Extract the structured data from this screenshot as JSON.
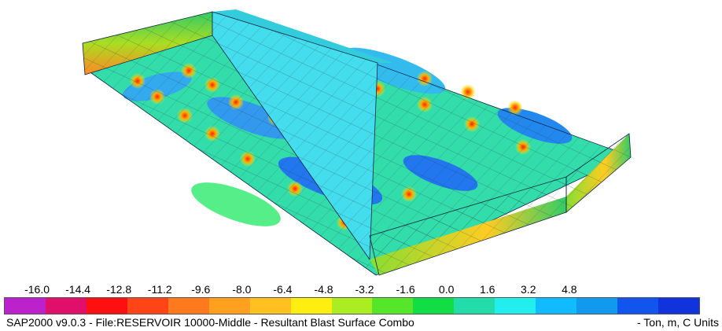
{
  "legend": {
    "ticks": [
      "-16.0",
      "-14.4",
      "-12.8",
      "-11.2",
      "-9.6",
      "-8.0",
      "-6.4",
      "-4.8",
      "-3.2",
      "-1.6",
      "0.0",
      "1.6",
      "3.2",
      "4.8"
    ]
  },
  "status": {
    "file": "SAP2000 v9.0.3 - File:RESERVOIR 10000-Middle - Resultant Blast Surface Combo",
    "units": "- Ton, m, C Units"
  }
}
